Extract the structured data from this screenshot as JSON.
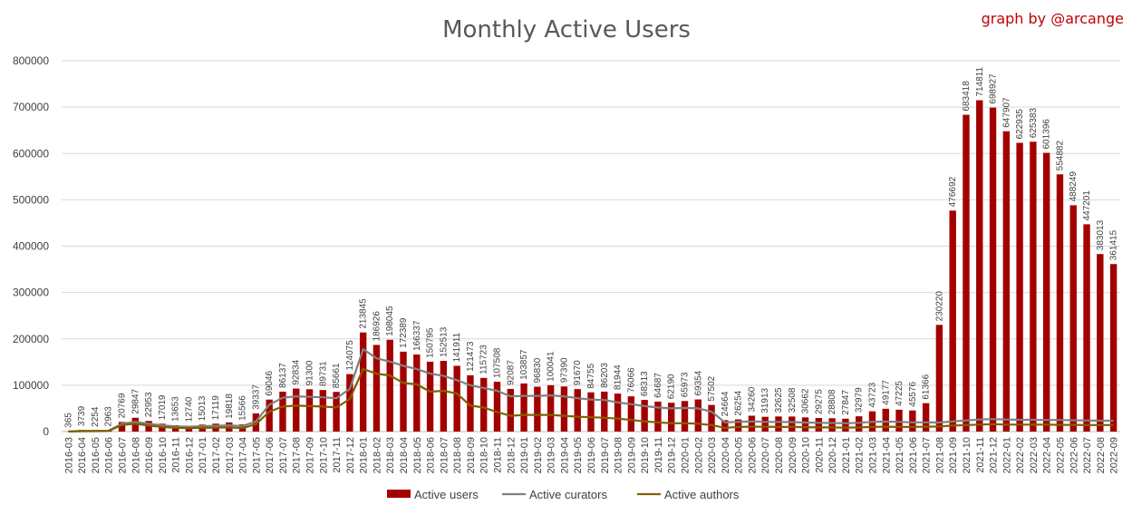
{
  "chart_data": {
    "type": "bar",
    "title": "Monthly Active Users",
    "credit": "graph by @arcange",
    "xlabel": "",
    "ylabel": "",
    "ylim": [
      0,
      800000
    ],
    "yticks": [
      "0",
      "100000",
      "200000",
      "300000",
      "400000",
      "500000",
      "600000",
      "700000",
      "800000"
    ],
    "grid": "horizontal",
    "legend_position": "bottom",
    "colors": {
      "users": "#a30000",
      "curators": "#808080",
      "authors": "#806000"
    },
    "categories": [
      "2016-03",
      "2016-04",
      "2016-05",
      "2016-06",
      "2016-07",
      "2016-08",
      "2016-09",
      "2016-10",
      "2016-11",
      "2016-12",
      "2017-01",
      "2017-02",
      "2017-03",
      "2017-04",
      "2017-05",
      "2017-06",
      "2017-07",
      "2017-08",
      "2017-09",
      "2017-10",
      "2017-11",
      "2017-12",
      "2018-01",
      "2018-02",
      "2018-03",
      "2018-04",
      "2018-05",
      "2018-06",
      "2018-07",
      "2018-08",
      "2018-09",
      "2018-10",
      "2018-11",
      "2018-12",
      "2019-01",
      "2019-02",
      "2019-03",
      "2019-04",
      "2019-05",
      "2019-06",
      "2019-07",
      "2019-08",
      "2019-09",
      "2019-10",
      "2019-11",
      "2019-12",
      "2020-01",
      "2020-02",
      "2020-03",
      "2020-04",
      "2020-05",
      "2020-06",
      "2020-07",
      "2020-08",
      "2020-09",
      "2020-10",
      "2020-11",
      "2020-12",
      "2021-01",
      "2021-02",
      "2021-03",
      "2021-04",
      "2021-05",
      "2021-06",
      "2021-07",
      "2021-08",
      "2021-09",
      "2021-10",
      "2021-11",
      "2021-12",
      "2022-01",
      "2022-02",
      "2022-03",
      "2022-04",
      "2022-05",
      "2022-06",
      "2022-07",
      "2022-08",
      "2022-09"
    ],
    "series": [
      {
        "name": "Active users",
        "kind": "bar",
        "values": [
          365,
          3739,
          2254,
          2963,
          20769,
          29847,
          22953,
          17019,
          13653,
          12740,
          15013,
          17119,
          19818,
          15566,
          39337,
          69046,
          86137,
          92834,
          91300,
          89731,
          85661,
          124075,
          213845,
          186926,
          198045,
          172389,
          166337,
          150795,
          152513,
          141911,
          121473,
          115723,
          107508,
          92087,
          103857,
          96830,
          100041,
          97390,
          91670,
          84755,
          86203,
          81944,
          76066,
          68313,
          64687,
          62190,
          65973,
          69354,
          57502,
          24664,
          26254,
          34260,
          31913,
          32625,
          32508,
          30662,
          29275,
          28808,
          27847,
          32979,
          43723,
          49177,
          47225,
          45576,
          61366,
          230220,
          476692,
          683418,
          714811,
          698927,
          647907,
          622935,
          625383,
          601396,
          554882,
          488249,
          447201,
          383013,
          361415
        ]
      },
      {
        "name": "Active curators",
        "kind": "line",
        "values": [
          300,
          1500,
          1800,
          2000,
          17000,
          21000,
          17000,
          13500,
          11000,
          10500,
          11500,
          12500,
          13500,
          12000,
          22000,
          58000,
          73000,
          76000,
          75000,
          74000,
          72000,
          92000,
          178000,
          158000,
          151000,
          142000,
          135000,
          125000,
          120000,
          111000,
          100000,
          94000,
          88000,
          76000,
          77000,
          77000,
          78000,
          76000,
          72000,
          69000,
          68000,
          63000,
          59000,
          55000,
          52000,
          50000,
          51000,
          50000,
          43000,
          20000,
          21000,
          22000,
          21000,
          21000,
          20500,
          19500,
          19000,
          18500,
          18000,
          19000,
          21000,
          21500,
          21000,
          20000,
          20000,
          19500,
          22000,
          24000,
          26000,
          27000,
          26000,
          25500,
          25500,
          25000,
          25000,
          24500,
          24000,
          23500,
          23500
        ]
      },
      {
        "name": "Active authors",
        "kind": "line",
        "values": [
          200,
          800,
          1000,
          1200,
          14000,
          17000,
          13000,
          10000,
          8000,
          7500,
          8000,
          8500,
          9000,
          7500,
          16000,
          43000,
          54000,
          56000,
          55000,
          54000,
          52000,
          70000,
          135000,
          125000,
          121000,
          105000,
          102000,
          86000,
          88000,
          82000,
          56000,
          52000,
          42000,
          34000,
          36000,
          36000,
          36000,
          34000,
          32000,
          31000,
          30000,
          28000,
          25000,
          22000,
          20000,
          18000,
          18000,
          17000,
          14000,
          8000,
          10000,
          10500,
          10500,
          10000,
          10000,
          9500,
          9000,
          9000,
          8500,
          9000,
          10000,
          10500,
          10000,
          10000,
          10500,
          11000,
          13000,
          14000,
          15000,
          16000,
          15000,
          15000,
          15000,
          15000,
          14500,
          14500,
          14000,
          14000,
          14000
        ]
      }
    ]
  }
}
